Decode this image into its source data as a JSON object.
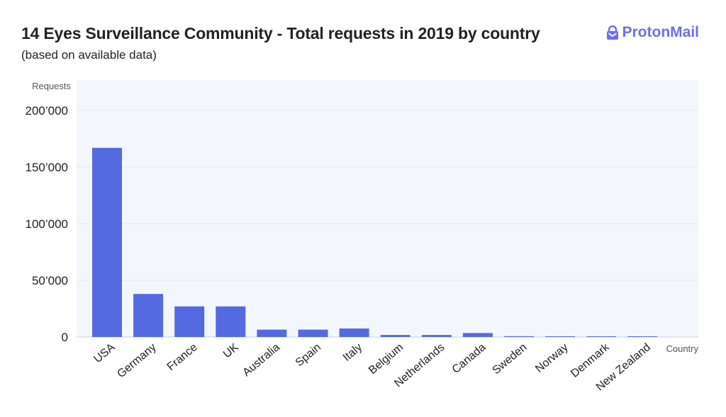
{
  "header": {
    "title": "14 Eyes Surveillance Community - Total requests in 2019 by country",
    "subtitle": "(based on available data)",
    "brand_name": "ProtonMail",
    "brand_icon": "protonmail-lock-icon",
    "brand_color": "#6d6ef0"
  },
  "chart_data": {
    "type": "bar",
    "title": "14 Eyes Surveillance Community - Total requests in 2019 by country",
    "subtitle": "(based on available data)",
    "xlabel": "Country",
    "ylabel": "Requests",
    "ylim": [
      0,
      200000
    ],
    "yticks": [
      0,
      50000,
      100000,
      150000,
      200000
    ],
    "ytick_labels": [
      "0",
      "50’000",
      "100’000",
      "150’000",
      "200’000"
    ],
    "grid": true,
    "legend": "none",
    "bar_color": "#546ae0",
    "categories": [
      "USA",
      "Germany",
      "France",
      "UK",
      "Australia",
      "Spain",
      "Italy",
      "Belgium",
      "Netherlands",
      "Canada",
      "Sweden",
      "Norway",
      "Denmark",
      "New Zealand"
    ],
    "values": [
      167000,
      38000,
      27000,
      27000,
      6500,
      6500,
      7500,
      1800,
      1800,
      3500,
      700,
      300,
      200,
      200
    ]
  }
}
